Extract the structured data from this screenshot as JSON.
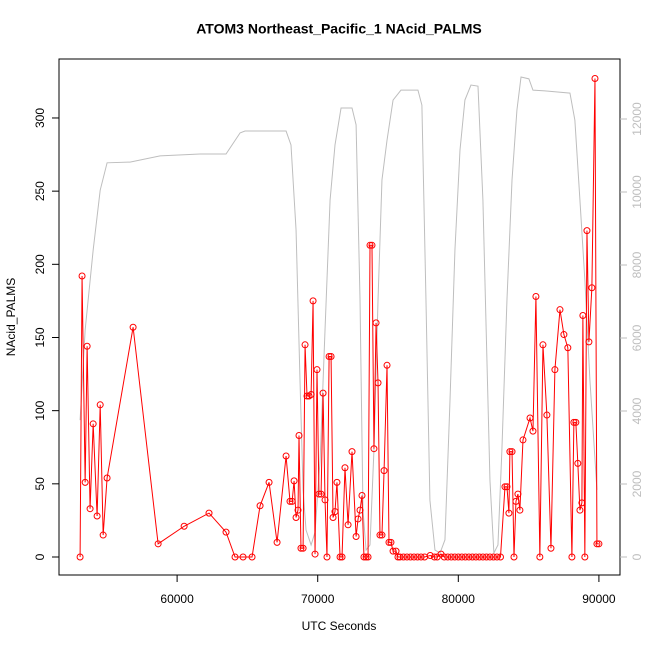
{
  "chart_data": {
    "type": "line",
    "title": "ATOM3 Northeast_Pacific_1 NAcid_PALMS",
    "x_label": "UTC Seconds",
    "y_label": "NAcid_PALMS",
    "xlim": [
      51600,
      91500
    ],
    "xticks": [
      60000,
      70000,
      80000,
      90000
    ],
    "ylim": [
      -12.3,
      340.3
    ],
    "yticks": [
      0,
      50,
      100,
      150,
      200,
      250,
      300
    ],
    "y2lim": [
      -493,
      13644
    ],
    "y2ticks": [
      0,
      2000,
      4000,
      6000,
      8000,
      10000,
      12000
    ],
    "y2_color": "#bebebe",
    "series": [
      {
        "color": "#ff0000",
        "markers": true,
        "x": [
          53100,
          53240,
          53460,
          53600,
          53810,
          54030,
          54310,
          54530,
          54740,
          55020,
          56870,
          58650,
          60500,
          62270,
          63480,
          64120,
          64690,
          65330,
          65900,
          66540,
          67110,
          67750,
          68030,
          68180,
          68320,
          68460,
          68600,
          68670,
          68810,
          68960,
          69100,
          69240,
          69380,
          69530,
          69670,
          69810,
          69950,
          70090,
          70240,
          70380,
          70520,
          70660,
          70810,
          70950,
          71090,
          71230,
          71370,
          71590,
          71730,
          71940,
          72160,
          72440,
          72730,
          72870,
          73010,
          73150,
          73290,
          73440,
          73580,
          73720,
          73860,
          74000,
          74150,
          74290,
          74430,
          74570,
          74720,
          74930,
          75070,
          75210,
          75360,
          75570,
          75710,
          75850,
          76100,
          76350,
          76600,
          76850,
          77100,
          77350,
          77600,
          78000,
          78300,
          78500,
          78770,
          79000,
          79250,
          79500,
          79750,
          80000,
          80250,
          80500,
          80750,
          81000,
          81250,
          81500,
          81750,
          82000,
          82250,
          82500,
          82750,
          83000,
          83320,
          83460,
          83600,
          83670,
          83820,
          83960,
          84100,
          84240,
          84380,
          84600,
          85100,
          85310,
          85520,
          85800,
          86020,
          86300,
          86590,
          86870,
          87230,
          87510,
          87790,
          88080,
          88220,
          88360,
          88500,
          88650,
          88790,
          88860,
          89000,
          89150,
          89290,
          89500,
          89720,
          89860,
          90000
        ],
        "values": [
          0,
          192,
          51,
          144,
          33,
          91,
          28,
          104,
          15,
          54,
          157,
          9,
          21,
          30,
          17,
          0,
          0,
          0,
          35,
          51,
          10,
          69,
          38,
          38,
          52,
          27,
          32,
          83,
          6,
          6,
          145,
          110,
          110,
          111,
          175,
          2,
          128,
          43,
          43,
          112,
          39,
          0,
          137,
          137,
          27,
          31,
          51,
          0,
          0,
          61,
          22,
          72,
          14,
          26,
          32,
          42,
          0,
          0,
          0,
          213,
          213,
          74,
          160,
          119,
          15,
          15,
          59,
          131,
          10,
          10,
          4,
          4,
          0,
          0,
          0,
          0,
          0,
          0,
          0,
          0,
          0,
          1,
          0,
          0,
          2,
          0,
          0,
          0,
          0,
          0,
          0,
          0,
          0,
          0,
          0,
          0,
          0,
          0,
          0,
          0,
          0,
          0,
          48,
          48,
          30,
          72,
          72,
          0,
          38,
          43,
          32,
          80,
          95,
          86,
          178,
          0,
          145,
          97,
          6,
          128,
          169,
          152,
          143,
          0,
          92,
          92,
          64,
          32,
          37,
          165,
          0,
          223,
          147,
          184,
          327,
          9,
          9
        ]
      },
      {
        "color": "#bebebe",
        "markers": false,
        "axis": "y2",
        "x": [
          53100,
          53460,
          54030,
          54530,
          55020,
          56650,
          58790,
          61630,
          63480,
          64480,
          64830,
          67750,
          68100,
          68460,
          68740,
          68960,
          69170,
          69530,
          69810,
          70170,
          70520,
          70880,
          71230,
          71660,
          72440,
          72730,
          73010,
          73220,
          73440,
          73720,
          74000,
          74290,
          74570,
          74930,
          75360,
          75920,
          77130,
          77410,
          77700,
          77980,
          78340,
          78700,
          79050,
          79410,
          79760,
          80120,
          80470,
          80900,
          81400,
          81750,
          82250,
          82530,
          82820,
          83100,
          83460,
          83820,
          84170,
          84460,
          85020,
          85310,
          86160,
          87940,
          88290,
          88650,
          89000,
          89360,
          89860
        ],
        "values": [
          3750,
          6220,
          8410,
          10050,
          10800,
          10820,
          10990,
          11040,
          11040,
          11620,
          11670,
          11670,
          11290,
          8960,
          4850,
          1840,
          740,
          330,
          680,
          2660,
          6220,
          9780,
          11290,
          12300,
          12300,
          11840,
          7040,
          1290,
          190,
          330,
          2930,
          7040,
          10330,
          11420,
          12520,
          12790,
          12790,
          12380,
          7040,
          1560,
          190,
          110,
          470,
          4300,
          8410,
          11150,
          12520,
          12930,
          12900,
          9780,
          2110,
          110,
          330,
          2930,
          7040,
          10330,
          12250,
          13150,
          13100,
          12790,
          12770,
          12710,
          11970,
          9780,
          7590,
          4850,
          1840
        ]
      }
    ]
  }
}
